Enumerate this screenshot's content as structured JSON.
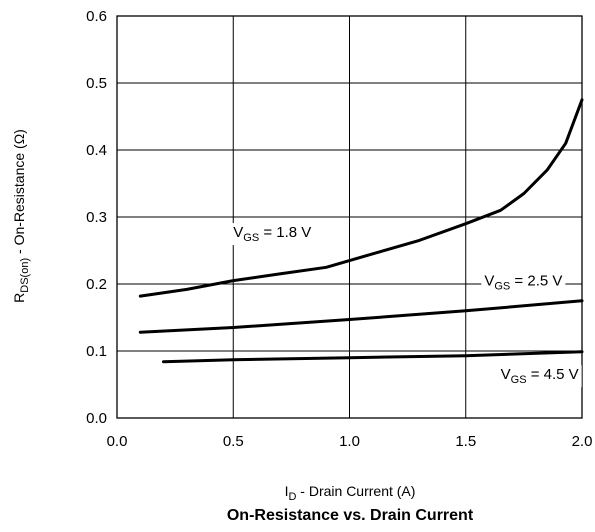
{
  "chart_data": {
    "type": "line",
    "title": "On-Resistance vs. Drain Current",
    "xlabel": {
      "main": "I",
      "sub": "D",
      "rest": " - Drain Current (A)"
    },
    "ylabel": {
      "main": "R",
      "sub": "DS(on)",
      "rest": " - On-Resistance (Ω)"
    },
    "xlim": [
      0,
      2
    ],
    "ylim": [
      0,
      0.6
    ],
    "xticks": [
      "0.0",
      "0.5",
      "1.0",
      "1.5",
      "2.0"
    ],
    "yticks": [
      "0.0",
      "0.1",
      "0.2",
      "0.3",
      "0.4",
      "0.5",
      "0.6"
    ],
    "grid": true,
    "series": [
      {
        "name": {
          "main": "V",
          "sub": "GS",
          "rest": " = 1.8 V"
        },
        "x": [
          0.1,
          0.3,
          0.5,
          0.7,
          0.9,
          1.1,
          1.3,
          1.5,
          1.65,
          1.75,
          1.85,
          1.93,
          2.0
        ],
        "y": [
          0.182,
          0.192,
          0.205,
          0.215,
          0.225,
          0.245,
          0.265,
          0.29,
          0.31,
          0.335,
          0.37,
          0.41,
          0.475
        ]
      },
      {
        "name": {
          "main": "V",
          "sub": "GS",
          "rest": " = 2.5 V"
        },
        "x": [
          0.1,
          0.5,
          1.0,
          1.5,
          2.0
        ],
        "y": [
          0.128,
          0.135,
          0.147,
          0.16,
          0.175
        ]
      },
      {
        "name": {
          "main": "V",
          "sub": "GS",
          "rest": " = 4.5 V"
        },
        "x": [
          0.2,
          0.5,
          1.0,
          1.5,
          2.0
        ],
        "y": [
          0.084,
          0.087,
          0.09,
          0.093,
          0.099
        ]
      }
    ]
  }
}
